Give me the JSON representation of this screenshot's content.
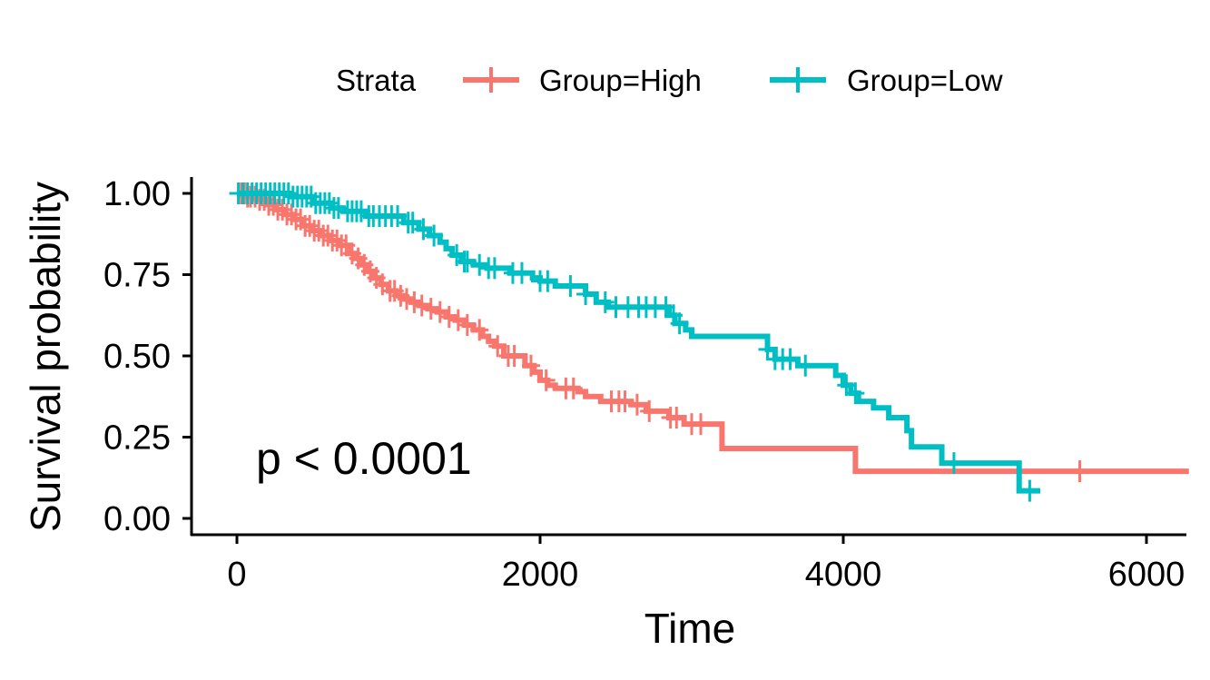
{
  "chart_data": {
    "type": "line",
    "xlabel": "Time",
    "ylabel": "Survival probability",
    "xlim": [
      -300,
      6300
    ],
    "ylim": [
      -0.05,
      1.05
    ],
    "x_ticks": [
      0,
      2000,
      4000,
      6000
    ],
    "x_tick_labels": [
      "0",
      "2000",
      "4000",
      "6000"
    ],
    "y_ticks": [
      0,
      0.25,
      0.5,
      0.75,
      1.0
    ],
    "y_tick_labels": [
      "0.00",
      "0.25",
      "0.50",
      "0.75",
      "1.00"
    ],
    "grid": false,
    "legend": {
      "title": "Strata",
      "position": "top",
      "entries": [
        "Group=High",
        "Group=Low"
      ]
    },
    "annotation": "p < 0.0001",
    "series": [
      {
        "name": "Group=High",
        "color": "#F8766D",
        "step_points": [
          [
            0,
            1.0
          ],
          [
            60,
            0.99
          ],
          [
            130,
            0.98
          ],
          [
            200,
            0.965
          ],
          [
            260,
            0.95
          ],
          [
            320,
            0.935
          ],
          [
            380,
            0.92
          ],
          [
            440,
            0.9
          ],
          [
            500,
            0.885
          ],
          [
            560,
            0.87
          ],
          [
            620,
            0.855
          ],
          [
            680,
            0.84
          ],
          [
            740,
            0.815
          ],
          [
            780,
            0.8
          ],
          [
            820,
            0.78
          ],
          [
            860,
            0.76
          ],
          [
            900,
            0.74
          ],
          [
            950,
            0.72
          ],
          [
            1000,
            0.7
          ],
          [
            1050,
            0.685
          ],
          [
            1100,
            0.675
          ],
          [
            1150,
            0.665
          ],
          [
            1200,
            0.655
          ],
          [
            1260,
            0.645
          ],
          [
            1320,
            0.635
          ],
          [
            1380,
            0.62
          ],
          [
            1440,
            0.61
          ],
          [
            1500,
            0.595
          ],
          [
            1560,
            0.58
          ],
          [
            1620,
            0.56
          ],
          [
            1660,
            0.545
          ],
          [
            1700,
            0.53
          ],
          [
            1760,
            0.5
          ],
          [
            1860,
            0.5
          ],
          [
            1900,
            0.47
          ],
          [
            1960,
            0.45
          ],
          [
            2000,
            0.425
          ],
          [
            2050,
            0.41
          ],
          [
            2100,
            0.4
          ],
          [
            2250,
            0.39
          ],
          [
            2300,
            0.375
          ],
          [
            2400,
            0.36
          ],
          [
            2600,
            0.35
          ],
          [
            2700,
            0.33
          ],
          [
            2850,
            0.31
          ],
          [
            2950,
            0.29
          ],
          [
            3200,
            0.215
          ],
          [
            4080,
            0.145
          ],
          [
            6280,
            0.145
          ]
        ],
        "censor_times": [
          10,
          30,
          50,
          70,
          90,
          120,
          150,
          180,
          210,
          240,
          270,
          300,
          330,
          360,
          390,
          420,
          450,
          480,
          510,
          540,
          570,
          600,
          630,
          660,
          690,
          720,
          760,
          800,
          840,
          880,
          920,
          960,
          1010,
          1040,
          1080,
          1120,
          1170,
          1220,
          1280,
          1340,
          1400,
          1460,
          1520,
          1600,
          1720,
          1790,
          1830,
          1940,
          2040,
          2170,
          2220,
          2470,
          2520,
          2560,
          2640,
          2720,
          2860,
          2900,
          3000,
          3060,
          5560
        ]
      },
      {
        "name": "Group=Low",
        "color": "#00BFC4",
        "step_points": [
          [
            0,
            1.0
          ],
          [
            350,
            0.99
          ],
          [
            500,
            0.97
          ],
          [
            620,
            0.955
          ],
          [
            700,
            0.945
          ],
          [
            850,
            0.93
          ],
          [
            1100,
            0.91
          ],
          [
            1200,
            0.89
          ],
          [
            1270,
            0.87
          ],
          [
            1340,
            0.85
          ],
          [
            1380,
            0.83
          ],
          [
            1420,
            0.81
          ],
          [
            1480,
            0.79
          ],
          [
            1560,
            0.78
          ],
          [
            1650,
            0.77
          ],
          [
            1800,
            0.755
          ],
          [
            1950,
            0.74
          ],
          [
            2000,
            0.73
          ],
          [
            2100,
            0.715
          ],
          [
            2300,
            0.69
          ],
          [
            2370,
            0.665
          ],
          [
            2450,
            0.65
          ],
          [
            2850,
            0.625
          ],
          [
            2890,
            0.6
          ],
          [
            2960,
            0.58
          ],
          [
            3000,
            0.56
          ],
          [
            3500,
            0.52
          ],
          [
            3550,
            0.49
          ],
          [
            3700,
            0.47
          ],
          [
            3950,
            0.44
          ],
          [
            4000,
            0.41
          ],
          [
            4050,
            0.385
          ],
          [
            4100,
            0.36
          ],
          [
            4200,
            0.34
          ],
          [
            4300,
            0.31
          ],
          [
            4420,
            0.27
          ],
          [
            4450,
            0.22
          ],
          [
            4650,
            0.17
          ],
          [
            5160,
            0.085
          ],
          [
            5300,
            0.085
          ]
        ],
        "censor_times": [
          10,
          40,
          70,
          100,
          130,
          160,
          190,
          220,
          250,
          280,
          310,
          340,
          370,
          400,
          430,
          460,
          490,
          520,
          550,
          580,
          610,
          640,
          670,
          730,
          760,
          790,
          820,
          870,
          900,
          940,
          980,
          1020,
          1060,
          1130,
          1160,
          1230,
          1300,
          1450,
          1500,
          1520,
          1600,
          1660,
          1700,
          1820,
          1880,
          2000,
          2050,
          2200,
          2300,
          2430,
          2500,
          2580,
          2650,
          2700,
          2760,
          2830,
          2880,
          2920,
          3500,
          3550,
          3600,
          3650,
          3750,
          4020,
          4080,
          4730,
          5230
        ]
      }
    ]
  }
}
